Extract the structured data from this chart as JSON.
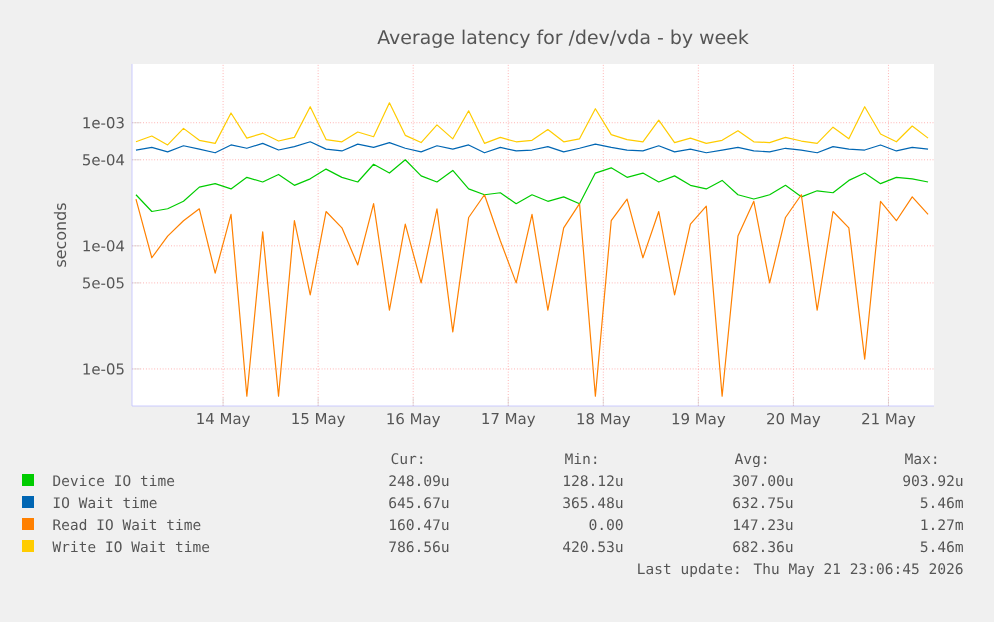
{
  "chart_data": {
    "type": "line",
    "title": "Average latency for /dev/vda - by week",
    "ylabel": "seconds",
    "x": [
      "2026-05-13T14:00",
      "2026-05-13T18:00",
      "2026-05-13T22:00",
      "2026-05-14T02:00",
      "2026-05-14T06:00",
      "2026-05-14T10:00",
      "2026-05-14T14:00",
      "2026-05-14T18:00",
      "2026-05-14T22:00",
      "2026-05-15T02:00",
      "2026-05-15T06:00",
      "2026-05-15T10:00",
      "2026-05-15T14:00",
      "2026-05-15T18:00",
      "2026-05-15T22:00",
      "2026-05-16T02:00",
      "2026-05-16T06:00",
      "2026-05-16T10:00",
      "2026-05-16T14:00",
      "2026-05-16T18:00",
      "2026-05-16T22:00",
      "2026-05-17T02:00",
      "2026-05-17T06:00",
      "2026-05-17T10:00",
      "2026-05-17T14:00",
      "2026-05-17T18:00",
      "2026-05-17T22:00",
      "2026-05-18T02:00",
      "2026-05-18T06:00",
      "2026-05-18T10:00",
      "2026-05-18T14:00",
      "2026-05-18T18:00",
      "2026-05-18T22:00",
      "2026-05-19T02:00",
      "2026-05-19T06:00",
      "2026-05-19T10:00",
      "2026-05-19T14:00",
      "2026-05-19T18:00",
      "2026-05-19T22:00",
      "2026-05-20T02:00",
      "2026-05-20T06:00",
      "2026-05-20T10:00",
      "2026-05-20T14:00",
      "2026-05-20T18:00",
      "2026-05-20T22:00",
      "2026-05-21T02:00",
      "2026-05-21T06:00",
      "2026-05-21T10:00",
      "2026-05-21T14:00",
      "2026-05-21T18:00",
      "2026-05-21T22:00"
    ],
    "series": [
      {
        "name": "Device IO time",
        "color": "#00cc00",
        "values": [
          0.00026,
          0.00019,
          0.0002,
          0.00023,
          0.0003,
          0.00032,
          0.00029,
          0.00036,
          0.00033,
          0.00038,
          0.00031,
          0.00035,
          0.00042,
          0.00036,
          0.00033,
          0.00046,
          0.00039,
          0.0005,
          0.00037,
          0.00033,
          0.00041,
          0.00029,
          0.00026,
          0.00027,
          0.00022,
          0.00026,
          0.00023,
          0.00025,
          0.00022,
          0.00039,
          0.00043,
          0.00036,
          0.00039,
          0.00033,
          0.00037,
          0.00031,
          0.00029,
          0.00034,
          0.00026,
          0.00024,
          0.00026,
          0.00031,
          0.00025,
          0.00028,
          0.00027,
          0.00034,
          0.00039,
          0.00032,
          0.00036,
          0.00035,
          0.00033
        ]
      },
      {
        "name": "IO Wait time",
        "color": "#0066b3",
        "values": [
          0.0006,
          0.00063,
          0.00058,
          0.00065,
          0.00061,
          0.00057,
          0.00066,
          0.00062,
          0.00068,
          0.0006,
          0.00064,
          0.0007,
          0.00061,
          0.00059,
          0.00067,
          0.00063,
          0.00069,
          0.00062,
          0.00058,
          0.00065,
          0.00061,
          0.00066,
          0.00057,
          0.00063,
          0.00059,
          0.0006,
          0.00064,
          0.00058,
          0.00062,
          0.00067,
          0.00063,
          0.0006,
          0.00059,
          0.00065,
          0.00058,
          0.00061,
          0.00057,
          0.0006,
          0.00063,
          0.00059,
          0.00058,
          0.00062,
          0.0006,
          0.00057,
          0.00064,
          0.00061,
          0.0006,
          0.00066,
          0.00059,
          0.00063,
          0.00061
        ]
      },
      {
        "name": "Read IO Wait time",
        "color": "#ff8000",
        "values": [
          0.00024,
          8e-05,
          0.00012,
          0.00016,
          0.0002,
          6e-05,
          0.00018,
          6e-06,
          0.00013,
          6e-06,
          0.00016,
          4e-05,
          0.00019,
          0.00014,
          7e-05,
          0.00022,
          3e-05,
          0.00015,
          5e-05,
          0.0002,
          2e-05,
          0.00017,
          0.00026,
          0.00011,
          5e-05,
          0.00018,
          3e-05,
          0.00014,
          0.00022,
          6e-06,
          0.00016,
          0.00024,
          8e-05,
          0.00019,
          4e-05,
          0.00015,
          0.00021,
          6e-06,
          0.00012,
          0.00023,
          5e-05,
          0.00017,
          0.00026,
          3e-05,
          0.00019,
          0.00014,
          1.2e-05,
          0.00023,
          0.00016,
          0.00025,
          0.00018
        ]
      },
      {
        "name": "Write IO Wait time",
        "color": "#ffcc00",
        "values": [
          0.0007,
          0.00078,
          0.00066,
          0.0009,
          0.00072,
          0.00068,
          0.0012,
          0.00075,
          0.00082,
          0.00071,
          0.00076,
          0.00135,
          0.00073,
          0.0007,
          0.00084,
          0.00077,
          0.00145,
          0.00079,
          0.00069,
          0.00096,
          0.00074,
          0.00125,
          0.00068,
          0.00076,
          0.0007,
          0.00072,
          0.00088,
          0.0007,
          0.00074,
          0.0013,
          0.0008,
          0.00073,
          0.0007,
          0.00105,
          0.00069,
          0.00075,
          0.00068,
          0.00072,
          0.00086,
          0.0007,
          0.00069,
          0.00076,
          0.00071,
          0.00068,
          0.00092,
          0.00074,
          0.00135,
          0.00081,
          0.0007,
          0.00094,
          0.00075
        ]
      }
    ],
    "xlim": [
      "2026-05-13T13:00",
      "2026-05-21T23:30"
    ],
    "xticks": [
      {
        "value": "2026-05-14T12:00",
        "label": "14 May"
      },
      {
        "value": "2026-05-15T12:00",
        "label": "15 May"
      },
      {
        "value": "2026-05-16T12:00",
        "label": "16 May"
      },
      {
        "value": "2026-05-17T12:00",
        "label": "17 May"
      },
      {
        "value": "2026-05-18T12:00",
        "label": "18 May"
      },
      {
        "value": "2026-05-19T12:00",
        "label": "19 May"
      },
      {
        "value": "2026-05-20T12:00",
        "label": "20 May"
      },
      {
        "value": "2026-05-21T12:00",
        "label": "21 May"
      }
    ],
    "ylim": [
      5e-06,
      0.003
    ],
    "yticks": [
      {
        "value": 1e-05,
        "label": "1e-05"
      },
      {
        "value": 5e-05,
        "label": "5e-05"
      },
      {
        "value": 0.0001,
        "label": "1e-04"
      },
      {
        "value": 0.0005,
        "label": "5e-04"
      },
      {
        "value": 0.001,
        "label": "1e-03"
      }
    ],
    "log": "y",
    "grid": true,
    "legend": "bottom",
    "marker": "none",
    "line_style": "solid",
    "annotations": [
      "Cur:",
      "Min:",
      "Avg:",
      "Max:",
      "248.09u",
      "128.12u",
      "307.00u",
      "903.92u",
      "645.67u",
      "365.48u",
      "632.75u",
      "5.46m",
      "160.47u",
      "0.00",
      "147.23u",
      "1.27m",
      "786.56u",
      "420.53u",
      "682.36u",
      "5.46m",
      "Last update: Thu May 21 23:06:45 2026"
    ]
  }
}
